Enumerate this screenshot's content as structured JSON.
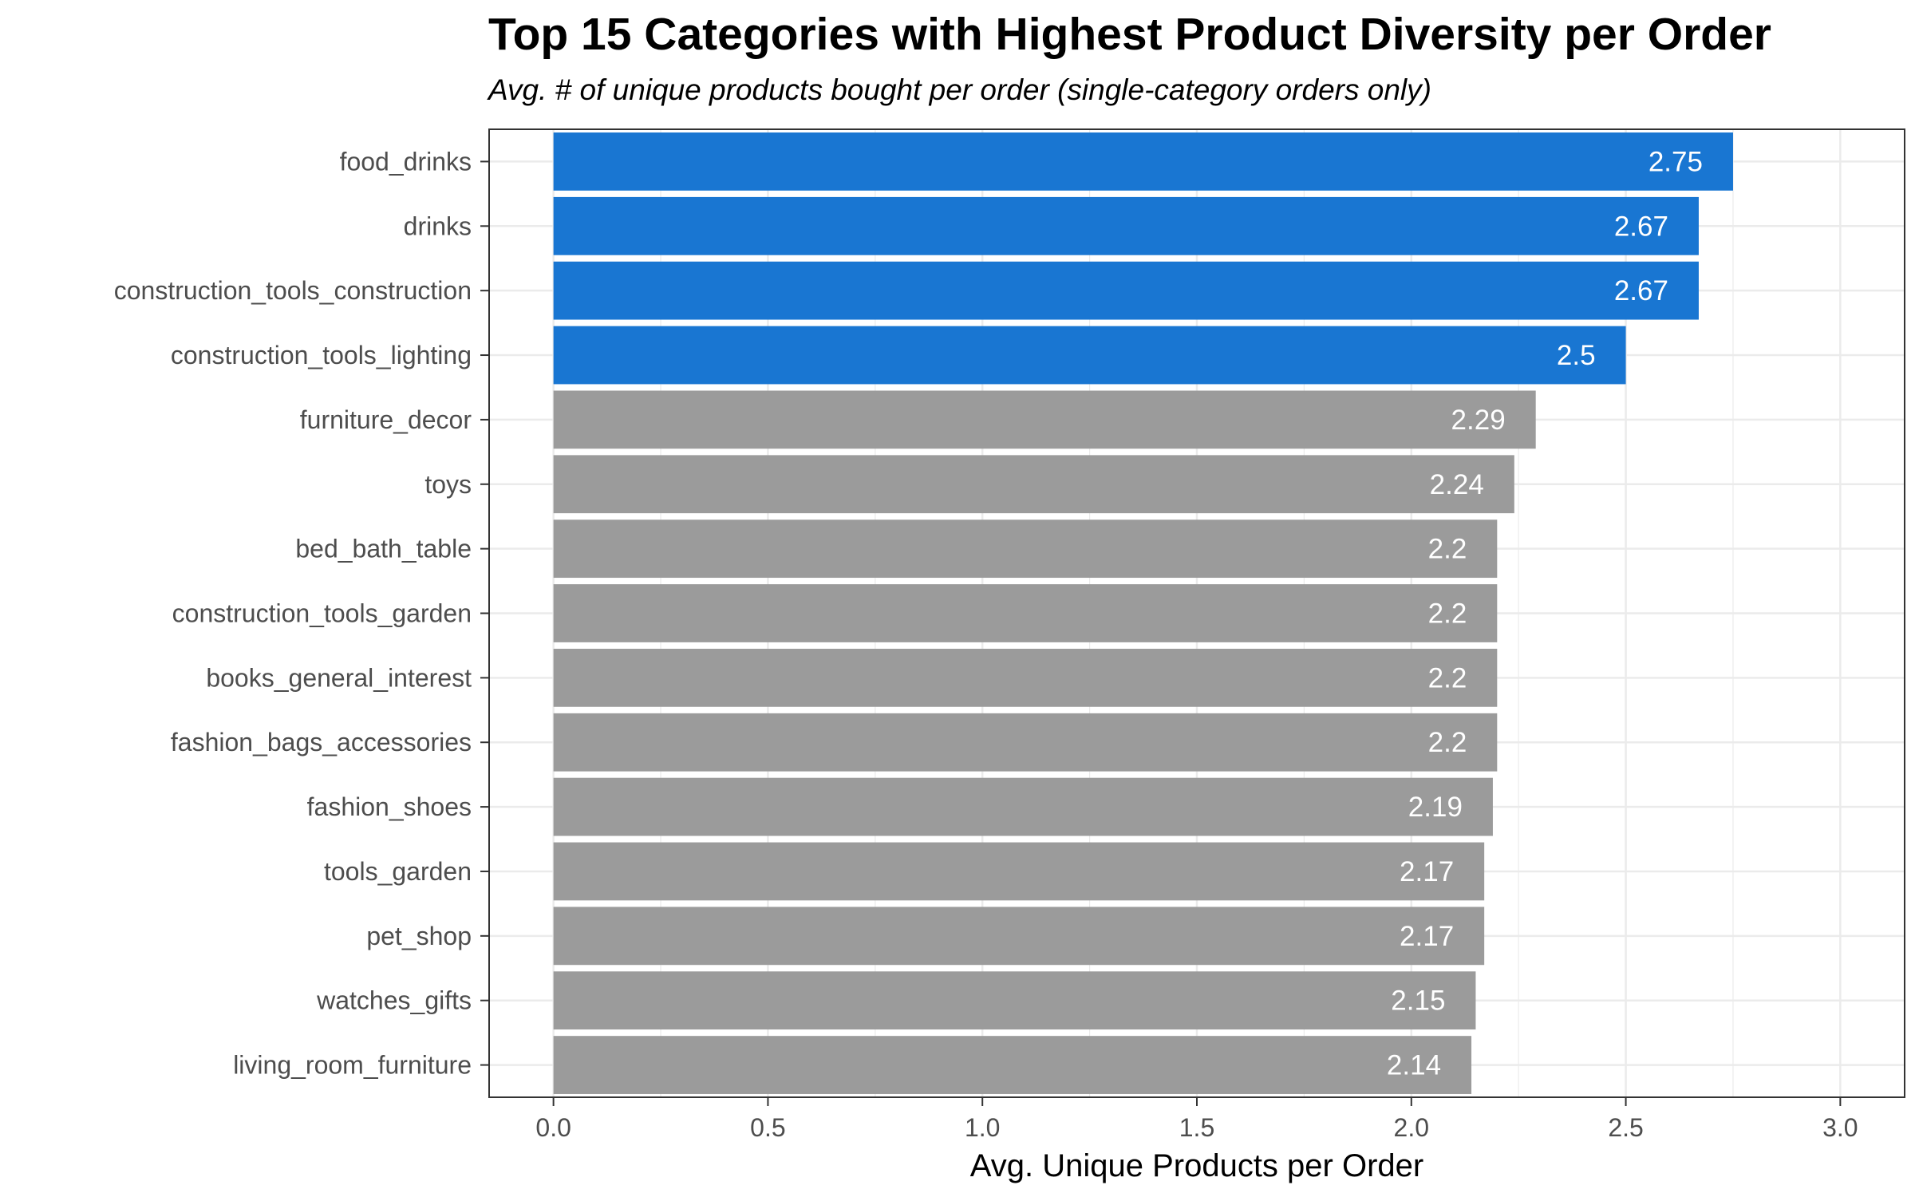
{
  "chart_data": {
    "type": "bar",
    "orientation": "horizontal",
    "title": "Top 15 Categories with Highest Product Diversity per Order",
    "subtitle": "Avg. # of unique products bought per order (single-category orders only)",
    "xlabel": "Avg. Unique Products per Order",
    "ylabel": "",
    "xlim": [
      -0.15,
      3.15
    ],
    "xticks": [
      0.0,
      0.5,
      1.0,
      1.5,
      2.0,
      2.5,
      3.0
    ],
    "xtick_labels": [
      "0.0",
      "0.5",
      "1.0",
      "1.5",
      "2.0",
      "2.5",
      "3.0"
    ],
    "grid": true,
    "legend": "none",
    "categories": [
      "food_drinks",
      "drinks",
      "construction_tools_construction",
      "construction_tools_lighting",
      "furniture_decor",
      "toys",
      "bed_bath_table",
      "construction_tools_garden",
      "books_general_interest",
      "fashion_bags_accessories",
      "fashion_shoes",
      "tools_garden",
      "pet_shop",
      "watches_gifts",
      "living_room_furniture"
    ],
    "values": [
      2.75,
      2.67,
      2.67,
      2.5,
      2.29,
      2.24,
      2.2,
      2.2,
      2.2,
      2.2,
      2.19,
      2.17,
      2.17,
      2.15,
      2.14
    ],
    "value_labels": [
      "2.75",
      "2.67",
      "2.67",
      "2.5",
      "2.29",
      "2.24",
      "2.2",
      "2.2",
      "2.2",
      "2.2",
      "2.19",
      "2.17",
      "2.17",
      "2.15",
      "2.14"
    ],
    "highlight_count": 4,
    "colors": {
      "highlight": "#1976d2",
      "default": "#9b9b9b",
      "label_text": "#ffffff",
      "grid": "#ebebeb",
      "axis_text": "#4d4d4d"
    }
  }
}
